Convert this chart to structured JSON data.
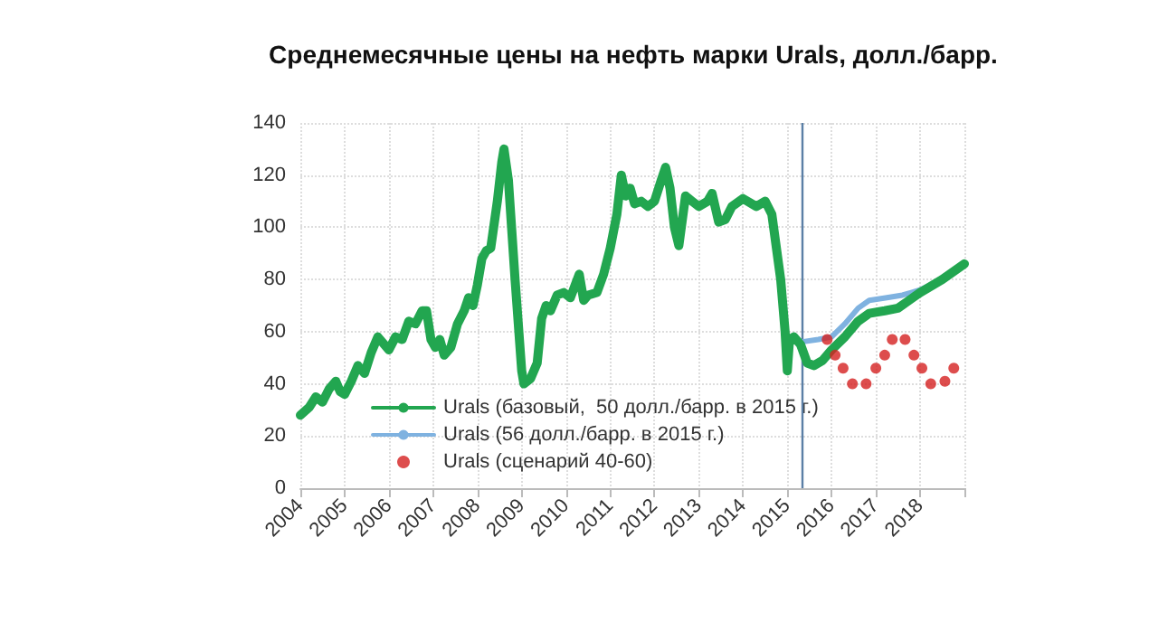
{
  "chart_data": {
    "type": "line",
    "title": "Среднемесячные цены на нефть марки Urals, долл./барр.",
    "xlim": [
      2004,
      2019
    ],
    "xticks": [
      2004,
      2005,
      2006,
      2007,
      2008,
      2009,
      2010,
      2011,
      2012,
      2013,
      2014,
      2015,
      2016,
      2017,
      2018,
      {
        "value": 2019,
        "label": null
      }
    ],
    "ylim": [
      0,
      140
    ],
    "yticks": [
      0,
      20,
      40,
      60,
      80,
      100,
      120,
      140
    ],
    "grid": true,
    "legend": "bottom left",
    "ref_lines": [
      {
        "axis": "x",
        "value": 2015.35,
        "color": "#5b7fa6"
      }
    ],
    "series": [
      {
        "name": "Urals (базовый,  50 долл./барр. в 2015 г.)",
        "color": "#22a650",
        "x": [
          2004.0,
          2004.2,
          2004.35,
          2004.5,
          2004.65,
          2004.8,
          2004.9,
          2005.0,
          2005.15,
          2005.3,
          2005.45,
          2005.6,
          2005.75,
          2005.9,
          2006.0,
          2006.15,
          2006.3,
          2006.45,
          2006.6,
          2006.75,
          2006.85,
          2006.95,
          2007.05,
          2007.15,
          2007.25,
          2007.4,
          2007.55,
          2007.7,
          2007.8,
          2007.9,
          2008.0,
          2008.1,
          2008.2,
          2008.3,
          2008.45,
          2008.55,
          2008.6,
          2008.7,
          2008.85,
          2009.0,
          2009.05,
          2009.2,
          2009.35,
          2009.45,
          2009.55,
          2009.65,
          2009.8,
          2009.95,
          2010.1,
          2010.3,
          2010.4,
          2010.5,
          2010.7,
          2010.85,
          2011.0,
          2011.15,
          2011.25,
          2011.35,
          2011.45,
          2011.55,
          2011.7,
          2011.85,
          2012.0,
          2012.15,
          2012.25,
          2012.35,
          2012.45,
          2012.55,
          2012.7,
          2012.85,
          2013.0,
          2013.2,
          2013.3,
          2013.45,
          2013.6,
          2013.75,
          2014.0,
          2014.3,
          2014.5,
          2014.65,
          2014.85,
          2014.95,
          2015.0,
          2015.05,
          2015.15,
          2015.3,
          2015.45,
          2015.6,
          2015.8,
          2016.0,
          2016.3,
          2016.6,
          2016.85,
          2017.2,
          2017.5,
          2017.75,
          2018.0,
          2018.5,
          2019.0
        ],
        "values": [
          28,
          31,
          35,
          33,
          38,
          41,
          37,
          36,
          41,
          47,
          44,
          52,
          58,
          55,
          53,
          58,
          57,
          64,
          63,
          68,
          68,
          57,
          54,
          57,
          51,
          54,
          63,
          68,
          73,
          70,
          78,
          88,
          91,
          92,
          110,
          125,
          130,
          118,
          80,
          45,
          40,
          42,
          48,
          65,
          70,
          68,
          74,
          75,
          73,
          82,
          72,
          74,
          75,
          82,
          92,
          105,
          120,
          112,
          115,
          109,
          110,
          108,
          110,
          118,
          123,
          115,
          100,
          93,
          112,
          110,
          108,
          110,
          113,
          102,
          103,
          108,
          111,
          108,
          110,
          105,
          80,
          60,
          45,
          57,
          58,
          55,
          48,
          47,
          49,
          53,
          58,
          64,
          67,
          68,
          69,
          72,
          75,
          80,
          86
        ]
      },
      {
        "name": "Urals (56 долл./барр. в 2015 г.)",
        "color": "#7fb2e0",
        "x": [
          2015.3,
          2015.7,
          2016.0,
          2016.3,
          2016.6,
          2016.85,
          2017.25,
          2017.6,
          2017.8,
          2018.0,
          2018.5,
          2019.0
        ],
        "values": [
          56,
          57,
          58,
          63,
          69,
          72,
          73,
          74,
          75,
          76,
          80,
          86
        ]
      },
      {
        "name": "Urals (сценарий 40-60)",
        "color": "#d42020",
        "type": "scatter",
        "marker": "circle",
        "x": [
          2015.9,
          2016.08,
          2016.26,
          2016.47,
          2016.78,
          2017.0,
          2017.2,
          2017.37,
          2017.66,
          2017.86,
          2018.04,
          2018.24,
          2018.56,
          2018.76
        ],
        "values": [
          57,
          51,
          46,
          40,
          40,
          46,
          51,
          57,
          57,
          51,
          46,
          40,
          41,
          46
        ]
      }
    ]
  }
}
